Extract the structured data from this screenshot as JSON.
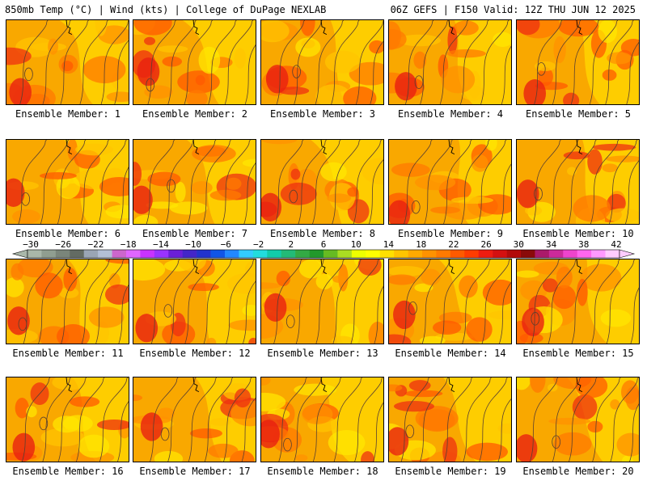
{
  "header": {
    "left_title": "850mb Temp (°C) | Wind (kts) | College of DuPage NEXLAB",
    "right_title": "06Z GEFS | F150 Valid: 12Z THU JUN 12 2025"
  },
  "panels": [
    {
      "label": "Ensemble Member: 1"
    },
    {
      "label": "Ensemble Member: 2"
    },
    {
      "label": "Ensemble Member: 3"
    },
    {
      "label": "Ensemble Member: 4"
    },
    {
      "label": "Ensemble Member: 5"
    },
    {
      "label": "Ensemble Member: 6"
    },
    {
      "label": "Ensemble Member: 7"
    },
    {
      "label": "Ensemble Member: 8"
    },
    {
      "label": "Ensemble Member: 9"
    },
    {
      "label": "Ensemble Member: 10"
    },
    {
      "label": "Ensemble Member: 11"
    },
    {
      "label": "Ensemble Member: 12"
    },
    {
      "label": "Ensemble Member: 13"
    },
    {
      "label": "Ensemble Member: 14"
    },
    {
      "label": "Ensemble Member: 15"
    },
    {
      "label": "Ensemble Member: 16"
    },
    {
      "label": "Ensemble Member: 17"
    },
    {
      "label": "Ensemble Member: 18"
    },
    {
      "label": "Ensemble Member: 19"
    },
    {
      "label": "Ensemble Member: 20"
    }
  ],
  "colorbar": {
    "ticks": [
      "−30",
      "−26",
      "−22",
      "−18",
      "−14",
      "−10",
      "−6",
      "−2",
      "2",
      "6",
      "10",
      "14",
      "18",
      "22",
      "26",
      "30",
      "34",
      "38",
      "42"
    ],
    "colors": [
      "#a9b7a9",
      "#909e90",
      "#7a857a",
      "#636b63",
      "#9aa5b5",
      "#b3bfd6",
      "#cc66cc",
      "#e066ff",
      "#c833ff",
      "#9933ff",
      "#6a1fd8",
      "#4326c9",
      "#2233cc",
      "#1155e6",
      "#2288ff",
      "#33ccff",
      "#22dddd",
      "#11ccaa",
      "#22bb77",
      "#33aa44",
      "#22992b",
      "#66bb22",
      "#aadd22",
      "#eeff00",
      "#ffff00",
      "#ffe000",
      "#ffc400",
      "#ffaa00",
      "#ff9200",
      "#ff7a00",
      "#ff5a00",
      "#ff3c00",
      "#ee1c10",
      "#d41010",
      "#b30a0a",
      "#8a0a0a",
      "#aa1a6a",
      "#cc2a9a",
      "#ee44cc",
      "#ff66ee",
      "#ff99ff",
      "#ffccff"
    ]
  }
}
